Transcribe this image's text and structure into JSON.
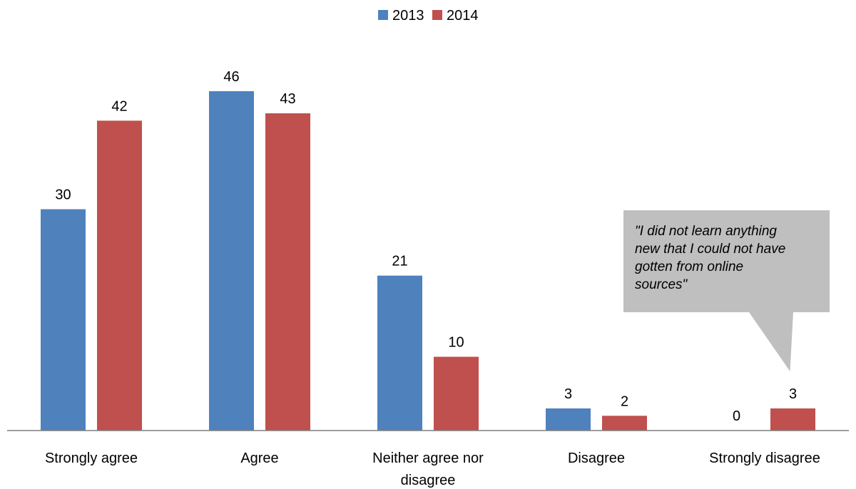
{
  "chart_data": {
    "type": "bar",
    "categories": [
      "Strongly agree",
      "Agree",
      "Neither agree nor disagree",
      "Disagree",
      "Strongly disagree"
    ],
    "category_lines": [
      [
        "Strongly agree"
      ],
      [
        "Agree"
      ],
      [
        "Neither agree nor",
        "disagree"
      ],
      [
        "Disagree"
      ],
      [
        "Strongly disagree"
      ]
    ],
    "series": [
      {
        "name": "2013",
        "color": "#4F81BD",
        "values": [
          30,
          46,
          21,
          3,
          0
        ]
      },
      {
        "name": "2014",
        "color": "#C0504D",
        "values": [
          42,
          43,
          10,
          2,
          3
        ]
      }
    ],
    "legend": {
      "position": "top"
    },
    "grid": false,
    "ylim": [
      0,
      50
    ],
    "annotation": {
      "lines": [
        "\"I did not learn anything",
        "new that I could not have",
        "gotten from online",
        "sources\""
      ],
      "target": {
        "category": "Strongly disagree",
        "series": "2014"
      },
      "fill": "#BFBFBF"
    }
  }
}
